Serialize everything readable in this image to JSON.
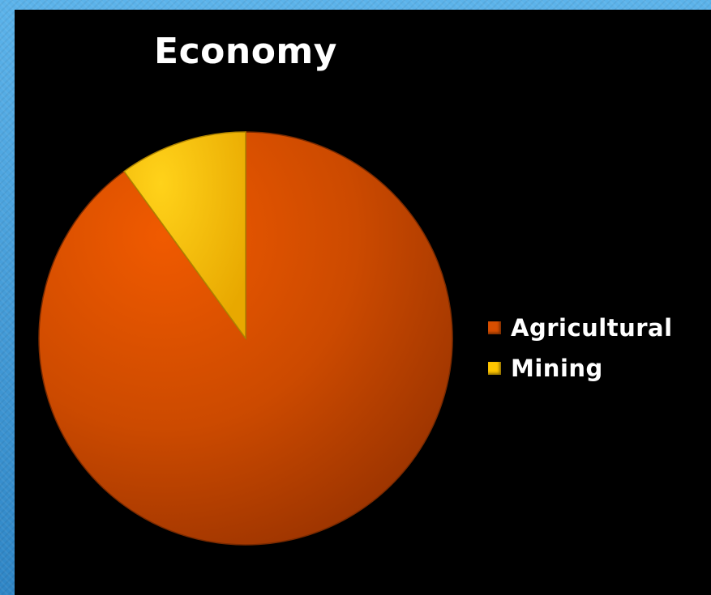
{
  "chart_data": {
    "type": "pie",
    "title": "Economy",
    "categories": [
      "Agricultural",
      "Mining"
    ],
    "values": [
      90,
      10
    ],
    "colors": [
      "#d94f00",
      "#ffc600"
    ],
    "legend_position": "right",
    "start_angle_deg": 0,
    "direction": "clockwise"
  }
}
